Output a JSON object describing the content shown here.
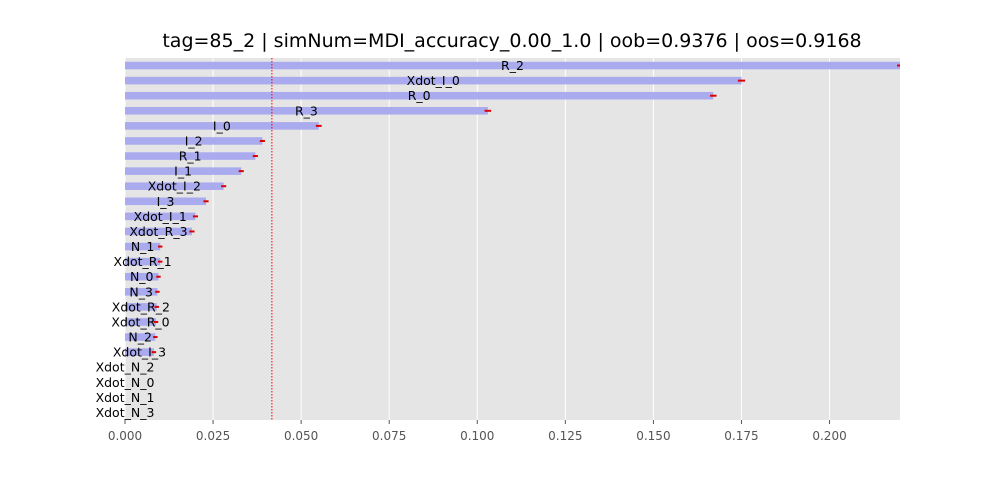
{
  "chart_data": {
    "type": "bar",
    "orientation": "horizontal",
    "title": "tag=85_2 | simNum=MDI_accuracy_0.00_1.0 | oob=0.9376 | oos=0.9168",
    "xlabel": "",
    "ylabel": "",
    "xlim": [
      0.0,
      0.22
    ],
    "x_ticks": [
      "0.000",
      "0.025",
      "0.050",
      "0.075",
      "0.100",
      "0.125",
      "0.150",
      "0.175",
      "0.200"
    ],
    "grid": true,
    "reference_line": 0.0417,
    "colors": {
      "bar": "#aaaaee",
      "error": "#dd0000",
      "reference_line": "#ff0000",
      "background": "#e5e5e5",
      "grid": "#ffffff"
    },
    "categories": [
      "R_2",
      "Xdot_I_0",
      "R_0",
      "R_3",
      "I_0",
      "I_2",
      "R_1",
      "I_1",
      "Xdot_I_2",
      "I_3",
      "Xdot_I_1",
      "Xdot_R_3",
      "N_1",
      "Xdot_R_1",
      "N_0",
      "N_3",
      "Xdot_R_2",
      "Xdot_R_0",
      "N_2",
      "Xdot_I_3",
      "Xdot_N_2",
      "Xdot_N_0",
      "Xdot_N_1",
      "Xdot_N_3"
    ],
    "values": [
      0.22,
      0.175,
      0.167,
      0.103,
      0.055,
      0.039,
      0.037,
      0.033,
      0.028,
      0.023,
      0.02,
      0.019,
      0.01,
      0.01,
      0.0095,
      0.0092,
      0.009,
      0.0088,
      0.0086,
      0.0082,
      0.0,
      0.0,
      0.0,
      0.0
    ],
    "errors": [
      0.0004,
      0.0006,
      0.0005,
      0.0005,
      0.0004,
      0.0003,
      0.0003,
      0.0003,
      0.0003,
      0.0003,
      0.0003,
      0.0003,
      0.0002,
      0.0002,
      0.0002,
      0.0002,
      0.0002,
      0.0002,
      0.0002,
      0.0002,
      0.0,
      0.0,
      0.0,
      0.0
    ]
  }
}
